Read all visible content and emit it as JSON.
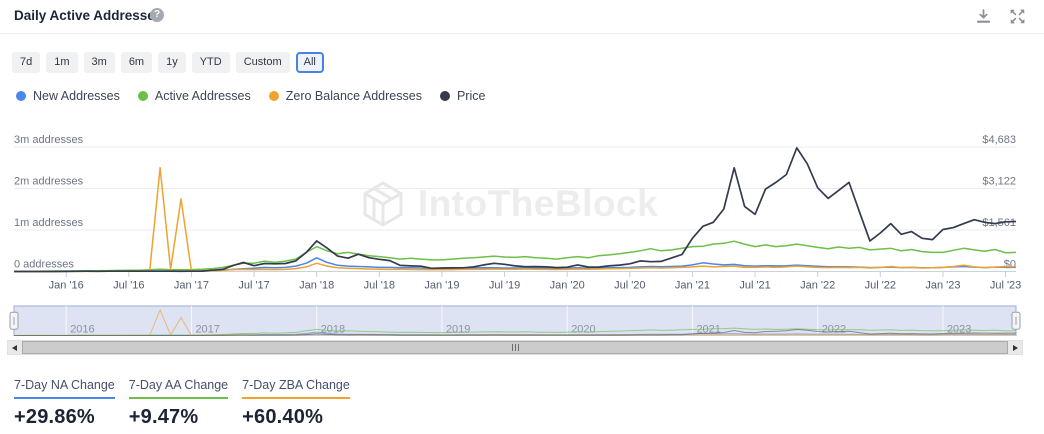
{
  "header": {
    "title": "Daily Active Addresses",
    "help_icon": "?",
    "actions": [
      {
        "label": "Download",
        "icon": "download-icon"
      },
      {
        "label": "Fullscreen",
        "icon": "expand-icon"
      }
    ]
  },
  "toolbar": {
    "ranges": [
      "7d",
      "1m",
      "3m",
      "6m",
      "1y",
      "YTD",
      "Custom",
      "All"
    ],
    "selected": "All"
  },
  "legend": [
    {
      "label": "New Addresses",
      "color": "#4a87e8"
    },
    {
      "label": "Active Addresses",
      "color": "#6cbf47"
    },
    {
      "label": "Zero Balance Addresses",
      "color": "#eda32f"
    },
    {
      "label": "Price",
      "color": "#343b4e"
    }
  ],
  "watermark": {
    "text": "IntoTheBlock"
  },
  "chart_data": {
    "type": "line",
    "x_unit": "month",
    "x_start": "2015-08",
    "x_ticks": [
      "Jan '16",
      "Jul '16",
      "Jan '17",
      "Jul '17",
      "Jan '18",
      "Jul '18",
      "Jan '19",
      "Jul '19",
      "Jan '20",
      "Jul '20",
      "Jan '21",
      "Jul '21",
      "Jan '22",
      "Jul '22",
      "Jan '23",
      "Jul '23"
    ],
    "y_left": {
      "ticks": [
        "0 addresses",
        "1m addresses",
        "2m addresses",
        "3m addresses"
      ],
      "max_millions": 3
    },
    "y_right": {
      "ticks": [
        "$0",
        "$1,561",
        "$3,122",
        "$4,683"
      ],
      "max_usd": 4683
    },
    "grid": true,
    "legend_position": "top",
    "series": [
      {
        "name": "New Addresses",
        "axis": "left",
        "unit": "millions",
        "color": "#4a87e8",
        "values": [
          0.002,
          0.003,
          0.003,
          0.004,
          0.004,
          0.005,
          0.005,
          0.006,
          0.006,
          0.007,
          0.008,
          0.008,
          0.009,
          0.01,
          0.012,
          0.01,
          0.01,
          0.012,
          0.015,
          0.022,
          0.03,
          0.05,
          0.065,
          0.08,
          0.1,
          0.09,
          0.1,
          0.13,
          0.2,
          0.33,
          0.22,
          0.15,
          0.13,
          0.12,
          0.11,
          0.1,
          0.1,
          0.09,
          0.09,
          0.085,
          0.08,
          0.08,
          0.082,
          0.085,
          0.085,
          0.09,
          0.09,
          0.085,
          0.085,
          0.09,
          0.085,
          0.082,
          0.08,
          0.082,
          0.088,
          0.082,
          0.085,
          0.09,
          0.095,
          0.1,
          0.11,
          0.12,
          0.115,
          0.12,
          0.13,
          0.16,
          0.21,
          0.18,
          0.16,
          0.17,
          0.14,
          0.13,
          0.14,
          0.135,
          0.14,
          0.155,
          0.14,
          0.125,
          0.115,
          0.115,
          0.11,
          0.105,
          0.095,
          0.1,
          0.105,
          0.095,
          0.1,
          0.09,
          0.09,
          0.1,
          0.11,
          0.12,
          0.105,
          0.095,
          0.105,
          0.1,
          0.1
        ]
      },
      {
        "name": "Active Addresses",
        "axis": "left",
        "unit": "millions",
        "color": "#6cbf47",
        "values": [
          0.004,
          0.006,
          0.008,
          0.009,
          0.011,
          0.013,
          0.015,
          0.017,
          0.019,
          0.022,
          0.026,
          0.03,
          0.032,
          0.04,
          0.052,
          0.042,
          0.04,
          0.046,
          0.052,
          0.07,
          0.1,
          0.15,
          0.2,
          0.2,
          0.25,
          0.22,
          0.25,
          0.3,
          0.46,
          0.6,
          0.5,
          0.43,
          0.46,
          0.42,
          0.38,
          0.36,
          0.33,
          0.3,
          0.32,
          0.3,
          0.28,
          0.28,
          0.3,
          0.32,
          0.33,
          0.35,
          0.37,
          0.35,
          0.34,
          0.36,
          0.33,
          0.32,
          0.3,
          0.33,
          0.36,
          0.33,
          0.38,
          0.4,
          0.43,
          0.46,
          0.5,
          0.55,
          0.5,
          0.52,
          0.56,
          0.6,
          0.61,
          0.66,
          0.68,
          0.73,
          0.66,
          0.6,
          0.64,
          0.6,
          0.62,
          0.66,
          0.62,
          0.58,
          0.55,
          0.59,
          0.56,
          0.58,
          0.52,
          0.54,
          0.56,
          0.5,
          0.53,
          0.48,
          0.46,
          0.46,
          0.51,
          0.56,
          0.52,
          0.49,
          0.53,
          0.45,
          0.46
        ]
      },
      {
        "name": "Zero Balance Addresses",
        "axis": "left",
        "unit": "millions",
        "color": "#eda32f",
        "values": [
          0.001,
          0.001,
          0.001,
          0.002,
          0.002,
          0.002,
          0.003,
          0.003,
          0.003,
          0.004,
          0.004,
          0.005,
          0.006,
          0.02,
          2.5,
          0.05,
          1.75,
          0.02,
          0.012,
          0.02,
          0.03,
          0.045,
          0.05,
          0.045,
          0.05,
          0.045,
          0.05,
          0.07,
          0.11,
          0.2,
          0.13,
          0.09,
          0.08,
          0.07,
          0.06,
          0.055,
          0.05,
          0.05,
          0.048,
          0.045,
          0.042,
          0.04,
          0.045,
          0.05,
          0.05,
          0.055,
          0.06,
          0.055,
          0.055,
          0.06,
          0.055,
          0.05,
          0.048,
          0.05,
          0.06,
          0.055,
          0.06,
          0.065,
          0.07,
          0.075,
          0.085,
          0.09,
          0.085,
          0.09,
          0.1,
          0.11,
          0.13,
          0.11,
          0.12,
          0.13,
          0.1,
          0.1,
          0.11,
          0.1,
          0.11,
          0.13,
          0.11,
          0.1,
          0.095,
          0.1,
          0.095,
          0.1,
          0.085,
          0.1,
          0.12,
          0.095,
          0.1,
          0.085,
          0.09,
          0.1,
          0.12,
          0.15,
          0.11,
          0.095,
          0.105,
          0.12,
          0.11
        ]
      },
      {
        "name": "Price",
        "axis": "right",
        "unit": "USD",
        "color": "#343b4e",
        "values": [
          1,
          1.2,
          0.9,
          0.9,
          0.9,
          2.3,
          6,
          11,
          8,
          10,
          13,
          12,
          11,
          13,
          12,
          10,
          8,
          10,
          15,
          50,
          80,
          230,
          340,
          220,
          300,
          290,
          300,
          400,
          720,
          1150,
          880,
          580,
          500,
          650,
          520,
          460,
          410,
          230,
          210,
          200,
          120,
          130,
          135,
          140,
          170,
          250,
          310,
          270,
          210,
          180,
          185,
          175,
          145,
          160,
          250,
          170,
          165,
          210,
          240,
          290,
          400,
          370,
          380,
          510,
          640,
          1250,
          1700,
          1850,
          2350,
          3900,
          2450,
          2150,
          3100,
          3350,
          3650,
          4650,
          4050,
          3150,
          2750,
          3050,
          3350,
          2250,
          1150,
          1450,
          1800,
          1400,
          1500,
          1250,
          1200,
          1580,
          1650,
          1800,
          1950,
          1850,
          1800,
          1870,
          1880
        ]
      }
    ]
  },
  "navigator": {
    "years": [
      "2016",
      "2017",
      "2018",
      "2019",
      "2020",
      "2021",
      "2022",
      "2023"
    ]
  },
  "stats": [
    {
      "label": "7-Day NA Change",
      "value": "+29.86%",
      "color": "#4a87e8"
    },
    {
      "label": "7-Day AA Change",
      "value": "+9.47%",
      "color": "#6cbf47"
    },
    {
      "label": "7-Day ZBA Change",
      "value": "+60.40%",
      "color": "#eda32f"
    }
  ]
}
